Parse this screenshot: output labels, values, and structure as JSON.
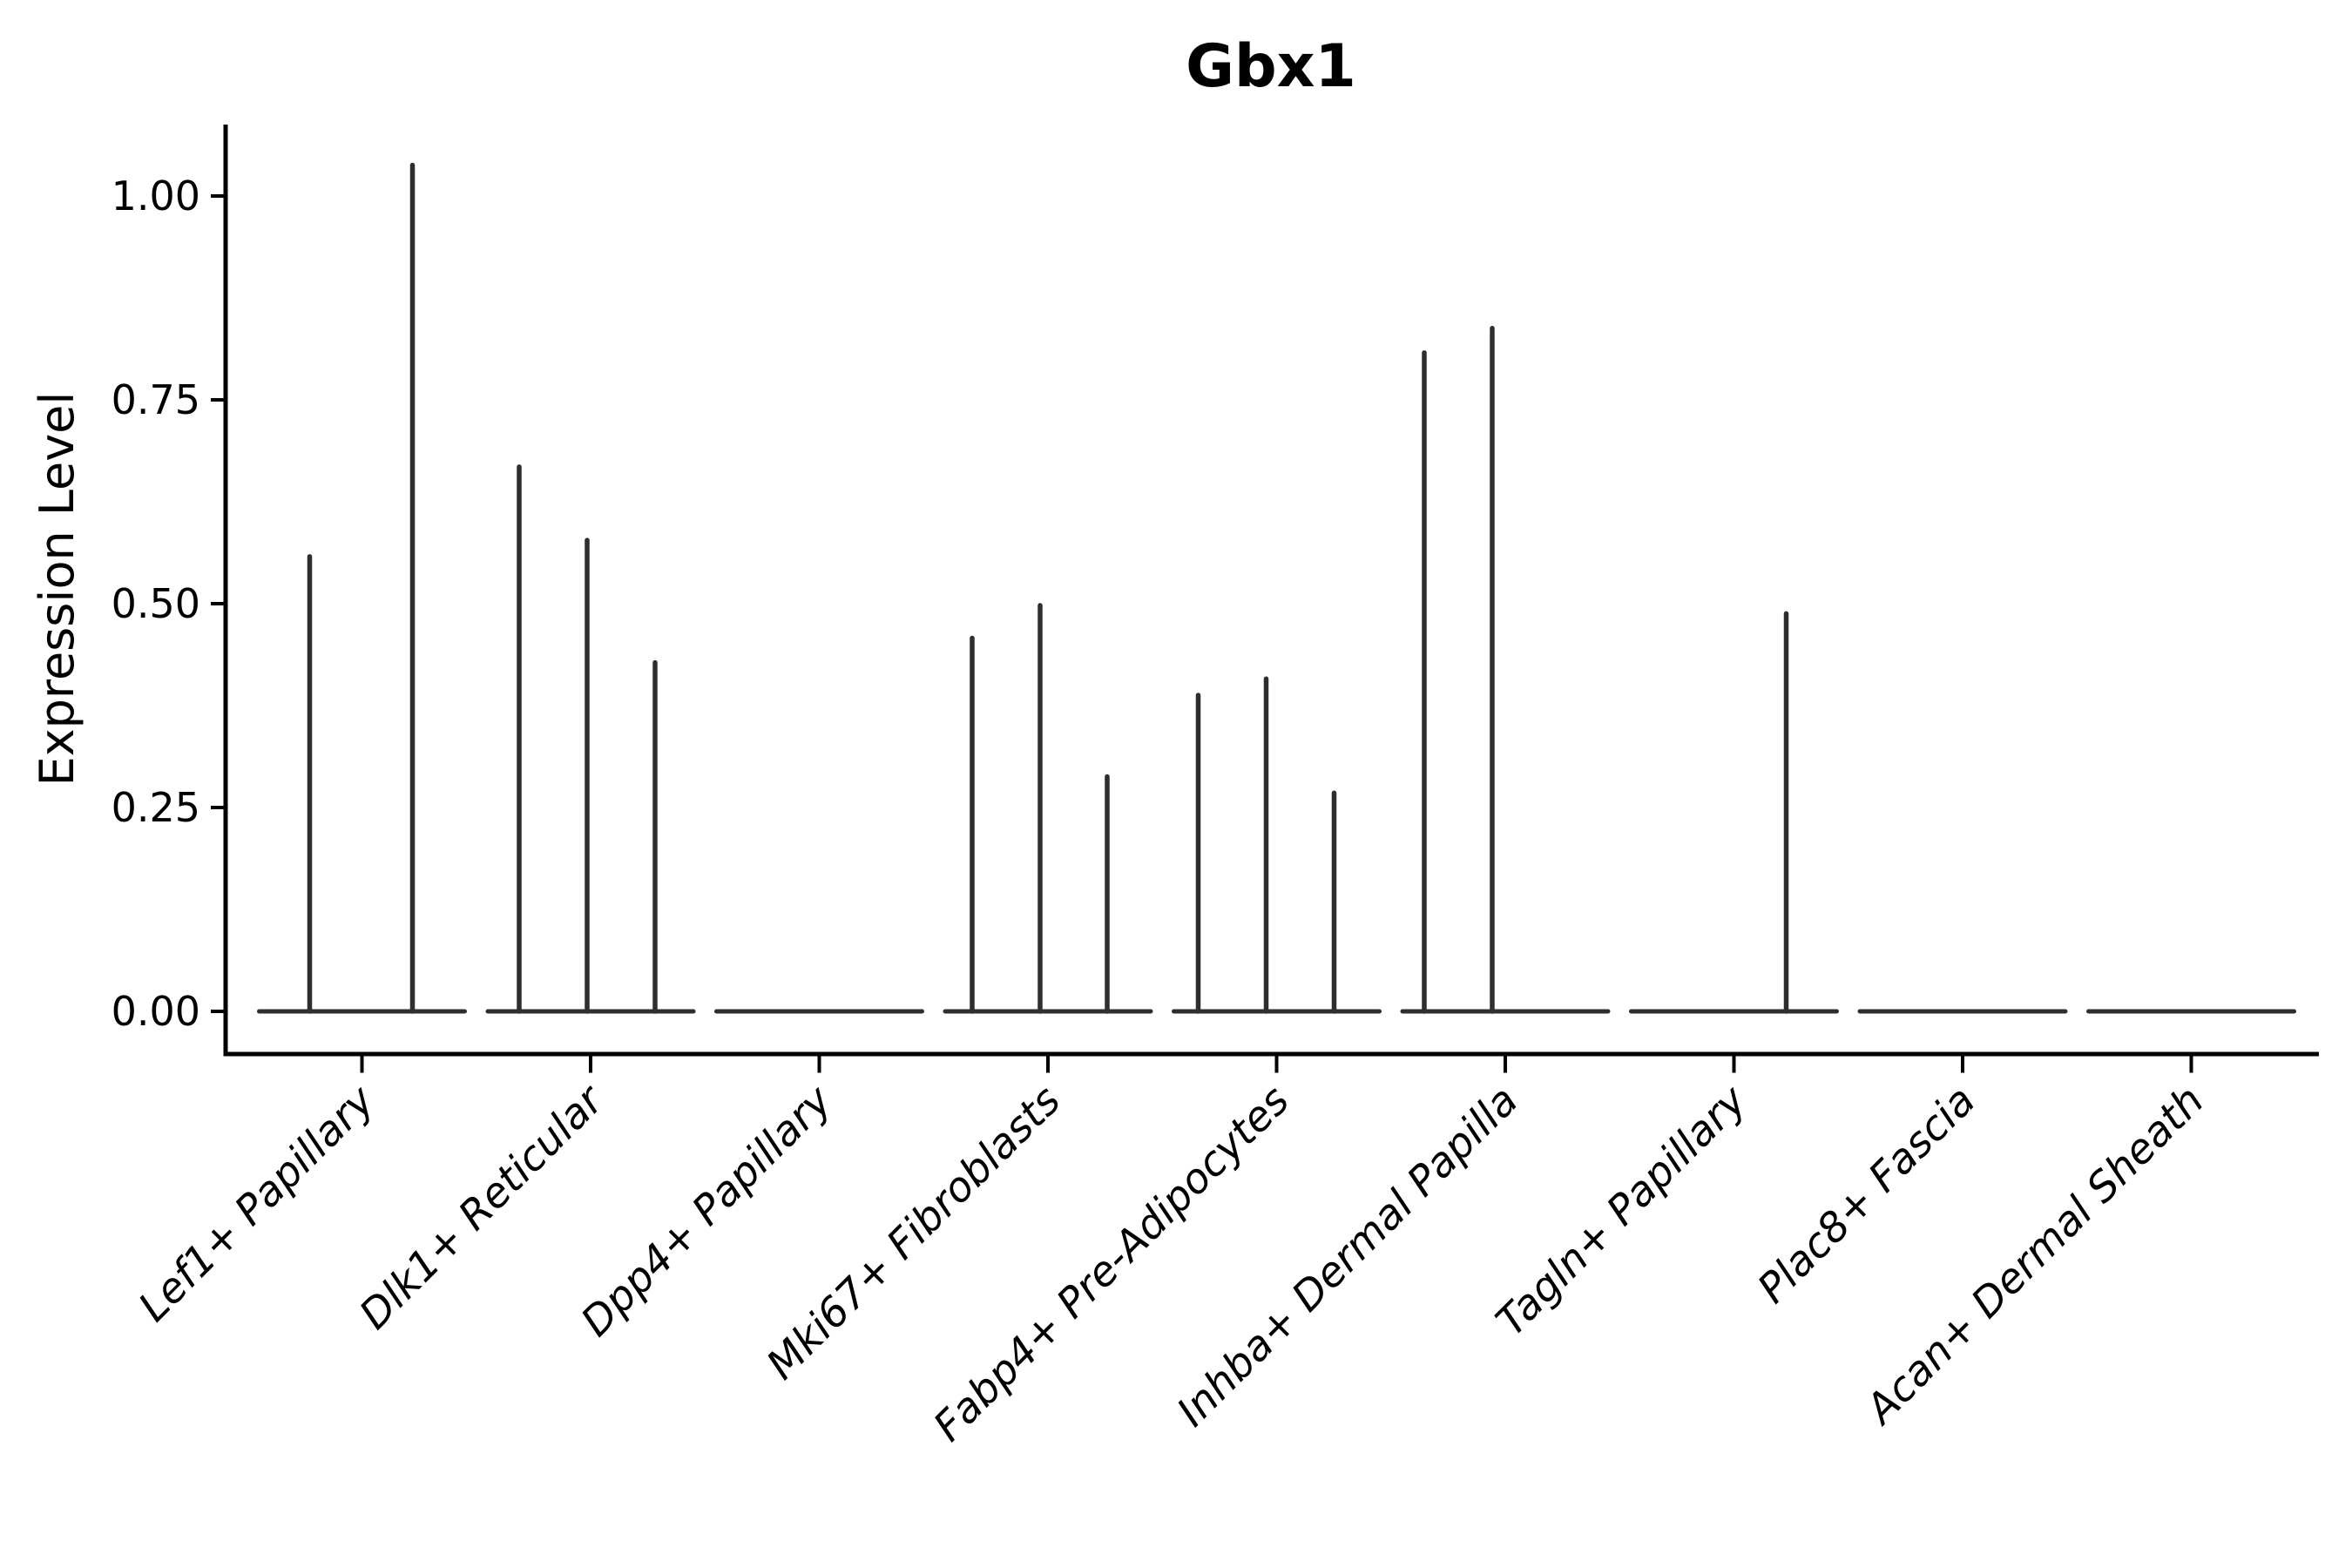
{
  "figure": {
    "background": "#ffffff"
  },
  "chart_data": {
    "type": "violin",
    "title": "Gbx1",
    "ylabel": "Expression Level",
    "xlabel": "",
    "grid": false,
    "legend": null,
    "ylim": [
      -0.05,
      1.09
    ],
    "ytick_values": [
      0,
      0.25,
      0.5,
      0.75,
      1.0
    ],
    "ytick_labels": [
      "0.00",
      "0.25",
      "0.50",
      "0.75",
      "1.00"
    ],
    "categories": [
      "Lef1+ Papillary",
      "Dlk1+ Reticular",
      "Dpp4+ Papillary",
      "Mki67+ Fibroblasts",
      "Fabp4+ Pre-Adipocytes",
      "Inhba+ Dermal Papilla",
      "Tagln+ Papillary",
      "Plac8+ Fascia",
      "Acan+ Dermal Sheath"
    ],
    "series": [
      {
        "category": "Lef1+ Papillary",
        "spikes": [
          {
            "offset": -60,
            "max": 0.56
          },
          {
            "offset": 58,
            "max": 1.04
          }
        ]
      },
      {
        "category": "Dlk1+ Reticular",
        "spikes": [
          {
            "offset": -82,
            "max": 0.67
          },
          {
            "offset": -4,
            "max": 0.58
          },
          {
            "offset": 74,
            "max": 0.43
          }
        ]
      },
      {
        "category": "Dpp4+ Papillary",
        "spikes": []
      },
      {
        "category": "Mki67+ Fibroblasts",
        "spikes": [
          {
            "offset": -87,
            "max": 0.46
          },
          {
            "offset": -9,
            "max": 0.5
          },
          {
            "offset": 68,
            "max": 0.29
          }
        ]
      },
      {
        "category": "Fabp4+ Pre-Adipocytes",
        "spikes": [
          {
            "offset": -90,
            "max": 0.39
          },
          {
            "offset": -12,
            "max": 0.41
          },
          {
            "offset": 66,
            "max": 0.27
          }
        ]
      },
      {
        "category": "Inhba+ Dermal Papilla",
        "spikes": [
          {
            "offset": -93,
            "max": 0.81
          },
          {
            "offset": -15,
            "max": 0.84
          }
        ]
      },
      {
        "category": "Tagln+ Papillary",
        "spikes": [
          {
            "offset": 60,
            "max": 0.49
          }
        ]
      },
      {
        "category": "Plac8+ Fascia",
        "spikes": []
      },
      {
        "category": "Acan+ Dermal Sheath",
        "spikes": []
      }
    ],
    "colors": {
      "violin": "#2e2e2e",
      "axis": "#000000",
      "text": "#000000",
      "background": "#ffffff"
    }
  }
}
